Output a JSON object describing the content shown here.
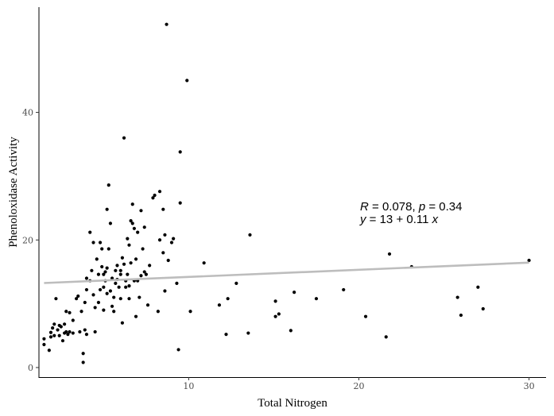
{
  "chart_data": {
    "type": "scatter",
    "xlabel": "Total Nitrogen",
    "ylabel": "Phenoloxidase Activity",
    "xlim": [
      1.2,
      31
    ],
    "ylim": [
      -1.5,
      56.5
    ],
    "x_ticks": [
      10,
      20,
      30
    ],
    "y_ticks": [
      0,
      20,
      40
    ],
    "grid": false,
    "colors": {
      "points": "#000000",
      "fit_line": "#bdbdbd"
    },
    "fit_line": {
      "x": [
        1.5,
        30
      ],
      "y": [
        13.25,
        16.45
      ]
    },
    "annotation": {
      "line1": {
        "r_sym": "R",
        "r_val": " = 0.078, ",
        "p_sym": "p",
        "p_val": " = 0.34"
      },
      "line2": {
        "y_sym": "y",
        "eq_mid": " = 13 + 0.11 ",
        "x_sym": "x"
      }
    },
    "points": [
      [
        1.5,
        4.5
      ],
      [
        1.5,
        3.6
      ],
      [
        1.8,
        2.7
      ],
      [
        1.9,
        4.8
      ],
      [
        1.9,
        5.5
      ],
      [
        2.0,
        6.2
      ],
      [
        2.1,
        6.8
      ],
      [
        2.1,
        5.0
      ],
      [
        2.2,
        10.8
      ],
      [
        2.3,
        5.9
      ],
      [
        2.4,
        6.6
      ],
      [
        2.4,
        5.0
      ],
      [
        2.5,
        6.4
      ],
      [
        2.6,
        4.2
      ],
      [
        2.7,
        5.4
      ],
      [
        2.7,
        6.8
      ],
      [
        2.8,
        5.6
      ],
      [
        2.8,
        8.8
      ],
      [
        2.9,
        5.2
      ],
      [
        3.0,
        5.6
      ],
      [
        3.0,
        8.6
      ],
      [
        3.2,
        7.4
      ],
      [
        3.2,
        5.4
      ],
      [
        3.4,
        10.8
      ],
      [
        3.5,
        11.2
      ],
      [
        3.6,
        5.6
      ],
      [
        3.7,
        8.8
      ],
      [
        3.8,
        2.2
      ],
      [
        3.8,
        0.8
      ],
      [
        3.9,
        5.9
      ],
      [
        3.9,
        10.2
      ],
      [
        4.0,
        12.2
      ],
      [
        4.0,
        5.2
      ],
      [
        4.0,
        14.0
      ],
      [
        4.2,
        13.6
      ],
      [
        4.2,
        21.2
      ],
      [
        4.3,
        15.2
      ],
      [
        4.4,
        19.6
      ],
      [
        4.4,
        11.4
      ],
      [
        4.5,
        9.4
      ],
      [
        4.5,
        5.6
      ],
      [
        4.6,
        17.0
      ],
      [
        4.7,
        14.6
      ],
      [
        4.7,
        10.2
      ],
      [
        4.8,
        19.6
      ],
      [
        4.8,
        12.2
      ],
      [
        4.9,
        15.8
      ],
      [
        4.9,
        18.6
      ],
      [
        5.0,
        12.6
      ],
      [
        5.0,
        9.0
      ],
      [
        5.0,
        14.6
      ],
      [
        5.1,
        15.0
      ],
      [
        5.1,
        13.6
      ],
      [
        5.2,
        24.8
      ],
      [
        5.2,
        11.6
      ],
      [
        5.2,
        15.6
      ],
      [
        5.3,
        28.6
      ],
      [
        5.3,
        18.6
      ],
      [
        5.4,
        22.6
      ],
      [
        5.4,
        12.0
      ],
      [
        5.5,
        14.0
      ],
      [
        5.5,
        9.6
      ],
      [
        5.6,
        11.0
      ],
      [
        5.6,
        8.8
      ],
      [
        5.7,
        15.2
      ],
      [
        5.7,
        13.2
      ],
      [
        5.8,
        16.0
      ],
      [
        5.8,
        13.8
      ],
      [
        5.9,
        12.6
      ],
      [
        6.0,
        14.6
      ],
      [
        6.0,
        10.8
      ],
      [
        6.0,
        15.2
      ],
      [
        6.1,
        17.2
      ],
      [
        6.1,
        7.0
      ],
      [
        6.2,
        36.0
      ],
      [
        6.2,
        16.2
      ],
      [
        6.3,
        13.6
      ],
      [
        6.3,
        12.6
      ],
      [
        6.4,
        20.2
      ],
      [
        6.4,
        14.6
      ],
      [
        6.5,
        10.8
      ],
      [
        6.5,
        19.2
      ],
      [
        6.5,
        12.8
      ],
      [
        6.6,
        23.0
      ],
      [
        6.6,
        16.4
      ],
      [
        6.7,
        25.6
      ],
      [
        6.7,
        22.6
      ],
      [
        6.8,
        21.8
      ],
      [
        6.8,
        13.6
      ],
      [
        6.9,
        17.0
      ],
      [
        6.9,
        8.0
      ],
      [
        7.0,
        13.6
      ],
      [
        7.0,
        21.2
      ],
      [
        7.1,
        11.0
      ],
      [
        7.2,
        24.6
      ],
      [
        7.2,
        14.4
      ],
      [
        7.3,
        18.6
      ],
      [
        7.4,
        22.0
      ],
      [
        7.4,
        15.0
      ],
      [
        7.5,
        14.6
      ],
      [
        7.6,
        9.8
      ],
      [
        7.7,
        16.0
      ],
      [
        7.9,
        26.6
      ],
      [
        8.0,
        27.0
      ],
      [
        8.2,
        8.8
      ],
      [
        8.3,
        27.6
      ],
      [
        8.3,
        20.0
      ],
      [
        8.5,
        24.8
      ],
      [
        8.5,
        18.0
      ],
      [
        8.6,
        20.8
      ],
      [
        8.6,
        12.0
      ],
      [
        8.7,
        53.8
      ],
      [
        8.8,
        16.8
      ],
      [
        9.0,
        19.6
      ],
      [
        9.1,
        20.2
      ],
      [
        9.3,
        13.2
      ],
      [
        9.4,
        2.8
      ],
      [
        9.5,
        25.8
      ],
      [
        9.5,
        33.8
      ],
      [
        9.9,
        45.0
      ],
      [
        10.1,
        8.8
      ],
      [
        10.9,
        16.4
      ],
      [
        11.8,
        9.8
      ],
      [
        12.2,
        5.2
      ],
      [
        12.3,
        10.8
      ],
      [
        12.8,
        13.2
      ],
      [
        13.5,
        5.4
      ],
      [
        13.6,
        20.8
      ],
      [
        15.1,
        8.0
      ],
      [
        15.1,
        10.4
      ],
      [
        15.3,
        8.4
      ],
      [
        16.0,
        5.8
      ],
      [
        16.2,
        11.8
      ],
      [
        17.5,
        10.8
      ],
      [
        19.1,
        12.2
      ],
      [
        20.4,
        8.0
      ],
      [
        21.6,
        4.8
      ],
      [
        21.8,
        17.8
      ],
      [
        23.1,
        15.8
      ],
      [
        25.8,
        11.0
      ],
      [
        26.0,
        8.2
      ],
      [
        27.0,
        12.6
      ],
      [
        27.3,
        9.2
      ],
      [
        30.0,
        16.8
      ]
    ]
  }
}
